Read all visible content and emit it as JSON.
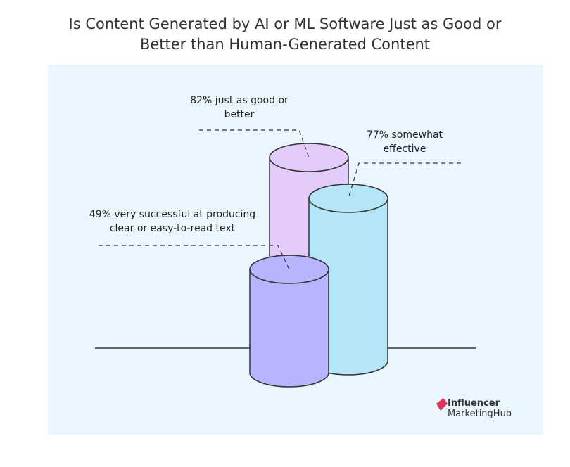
{
  "chart_data": {
    "type": "bar",
    "title": "Is Content Generated by AI or ML Software Just as Good or Better than Human-Generated Content",
    "values": [
      82,
      77,
      49
    ],
    "value_labels": [
      "82% just as good or better",
      "77% somewhat effective",
      "49% very successful at producing clear or easy-to-read text"
    ],
    "colors": [
      "#e3cbfb",
      "#b4e6f8",
      "#b7b5fd"
    ],
    "brand": [
      "Influencer",
      "MarketingHub"
    ]
  }
}
